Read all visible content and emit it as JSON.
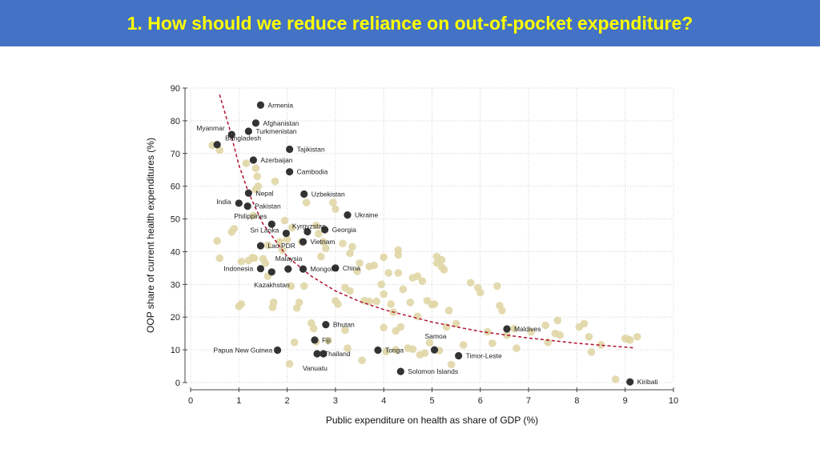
{
  "header": {
    "title": "1. How should we reduce reliance on out-of-pocket expenditure?"
  },
  "colors": {
    "header_bg": "#4472c4",
    "title": "#ffff00",
    "background_points": "#e0d6a6",
    "labeled_points": "#333333",
    "fit_line": "#b01030"
  },
  "chart_data": {
    "type": "scatter",
    "xlabel": "Public expenditure on health as share of GDP (%)",
    "ylabel": "OOP share of current health expenditures (%)",
    "xlim": [
      0,
      10
    ],
    "ylim": [
      0,
      90
    ],
    "xticks": [
      0,
      1,
      2,
      3,
      4,
      5,
      6,
      7,
      8,
      9,
      10
    ],
    "yticks": [
      0,
      10,
      20,
      30,
      40,
      50,
      60,
      70,
      80,
      90
    ],
    "grid": true,
    "labeled_points": [
      {
        "label": "Armenia",
        "x": 1.45,
        "y": 84.8
      },
      {
        "label": "Afghanistan",
        "x": 1.35,
        "y": 79.3
      },
      {
        "label": "Turkmenistan",
        "x": 1.2,
        "y": 76.8
      },
      {
        "label": "Myanmar",
        "x": 0.85,
        "y": 75.8
      },
      {
        "label": "Bangladesh",
        "x": 0.55,
        "y": 72.7
      },
      {
        "label": "Tajikistan",
        "x": 2.05,
        "y": 71.3
      },
      {
        "label": "Azerbaijan",
        "x": 1.3,
        "y": 68.0
      },
      {
        "label": "Cambodia",
        "x": 2.05,
        "y": 64.4
      },
      {
        "label": "Nepal",
        "x": 1.2,
        "y": 57.9
      },
      {
        "label": "Uzbekistan",
        "x": 2.35,
        "y": 57.6
      },
      {
        "label": "India",
        "x": 1.0,
        "y": 54.8
      },
      {
        "label": "Pakistan",
        "x": 1.18,
        "y": 53.9
      },
      {
        "label": "Ukraine",
        "x": 3.25,
        "y": 51.2
      },
      {
        "label": "Philippines",
        "x": 1.68,
        "y": 48.4
      },
      {
        "label": "Kyrgyzstan",
        "x": 2.42,
        "y": 46.1
      },
      {
        "label": "Georgia",
        "x": 2.78,
        "y": 46.7
      },
      {
        "label": "Sri Lanka",
        "x": 1.98,
        "y": 45.6
      },
      {
        "label": "Vietnam",
        "x": 2.33,
        "y": 43.0
      },
      {
        "label": "Lao PDR",
        "x": 1.45,
        "y": 41.8
      },
      {
        "label": "Malaysia",
        "x": 2.02,
        "y": 34.7
      },
      {
        "label": "China",
        "x": 3.0,
        "y": 35.0
      },
      {
        "label": "Indonesia",
        "x": 1.45,
        "y": 34.8
      },
      {
        "label": "Mongolia",
        "x": 2.33,
        "y": 34.7
      },
      {
        "label": "Kazakhstan",
        "x": 1.68,
        "y": 33.8
      },
      {
        "label": "Maldives",
        "x": 6.55,
        "y": 16.4
      },
      {
        "label": "Bhutan",
        "x": 2.8,
        "y": 17.7
      },
      {
        "label": "Fiji",
        "x": 2.57,
        "y": 13.0
      },
      {
        "label": "Samoa",
        "x": 5.05,
        "y": 10.0
      },
      {
        "label": "Papua New Guinea",
        "x": 1.8,
        "y": 9.9
      },
      {
        "label": "Tonga",
        "x": 3.88,
        "y": 9.9
      },
      {
        "label": "Thailand",
        "x": 2.62,
        "y": 8.8
      },
      {
        "label": "Timor-Leste",
        "x": 5.55,
        "y": 8.2
      },
      {
        "label": "Vanuatu",
        "x": 2.75,
        "y": 8.8
      },
      {
        "label": "Solomon Islands",
        "x": 4.35,
        "y": 3.4
      },
      {
        "label": "Kiribati",
        "x": 9.1,
        "y": 0.2
      }
    ],
    "other_points": [
      [
        0.45,
        72.5
      ],
      [
        0.6,
        71.0
      ],
      [
        0.55,
        43.3
      ],
      [
        0.6,
        38.0
      ],
      [
        0.85,
        46.0
      ],
      [
        0.9,
        47.0
      ],
      [
        1.0,
        23.3
      ],
      [
        1.05,
        24.0
      ],
      [
        1.05,
        37.0
      ],
      [
        1.15,
        67.0
      ],
      [
        1.2,
        37.3
      ],
      [
        1.28,
        38.2
      ],
      [
        1.35,
        65.5
      ],
      [
        1.38,
        63.0
      ],
      [
        1.4,
        60.0
      ],
      [
        1.35,
        59.0
      ],
      [
        1.3,
        51.0
      ],
      [
        1.32,
        38.0
      ],
      [
        1.5,
        37.8
      ],
      [
        1.55,
        36.5
      ],
      [
        1.6,
        32.5
      ],
      [
        1.6,
        42.0
      ],
      [
        1.7,
        23.0
      ],
      [
        1.72,
        24.5
      ],
      [
        1.75,
        61.5
      ],
      [
        1.85,
        43.0
      ],
      [
        1.9,
        40.5
      ],
      [
        1.95,
        49.5
      ],
      [
        2.0,
        43.8
      ],
      [
        2.05,
        5.7
      ],
      [
        2.08,
        29.5
      ],
      [
        2.1,
        47.3
      ],
      [
        2.15,
        12.3
      ],
      [
        2.2,
        22.8
      ],
      [
        2.25,
        24.5
      ],
      [
        2.3,
        43.0
      ],
      [
        2.35,
        29.5
      ],
      [
        2.4,
        55.0
      ],
      [
        2.5,
        18.2
      ],
      [
        2.55,
        16.5
      ],
      [
        2.6,
        12.5
      ],
      [
        2.6,
        48.0
      ],
      [
        2.65,
        45.5
      ],
      [
        2.7,
        38.5
      ],
      [
        2.75,
        43.0
      ],
      [
        2.8,
        41.0
      ],
      [
        2.85,
        12.8
      ],
      [
        2.95,
        55.0
      ],
      [
        3.0,
        53.0
      ],
      [
        3.0,
        25.0
      ],
      [
        3.05,
        24.0
      ],
      [
        3.15,
        42.5
      ],
      [
        3.2,
        16.0
      ],
      [
        3.2,
        29.0
      ],
      [
        3.25,
        10.5
      ],
      [
        3.3,
        28.0
      ],
      [
        3.3,
        39.5
      ],
      [
        3.35,
        41.5
      ],
      [
        3.45,
        34.0
      ],
      [
        3.5,
        36.5
      ],
      [
        3.55,
        6.8
      ],
      [
        3.6,
        25.0
      ],
      [
        3.7,
        24.8
      ],
      [
        3.7,
        35.5
      ],
      [
        3.8,
        35.8
      ],
      [
        3.85,
        24.8
      ],
      [
        3.95,
        30.0
      ],
      [
        4.0,
        38.3
      ],
      [
        4.0,
        27.0
      ],
      [
        4.0,
        16.8
      ],
      [
        4.05,
        9.5
      ],
      [
        4.1,
        33.5
      ],
      [
        4.15,
        24.0
      ],
      [
        4.2,
        21.5
      ],
      [
        4.25,
        10.0
      ],
      [
        4.25,
        15.8
      ],
      [
        4.3,
        40.5
      ],
      [
        4.3,
        33.5
      ],
      [
        4.3,
        39.0
      ],
      [
        4.35,
        17.0
      ],
      [
        4.4,
        28.5
      ],
      [
        4.5,
        10.5
      ],
      [
        4.55,
        24.5
      ],
      [
        4.6,
        32.0
      ],
      [
        4.6,
        10.2
      ],
      [
        4.7,
        32.5
      ],
      [
        4.7,
        20.2
      ],
      [
        4.75,
        8.5
      ],
      [
        4.8,
        31.0
      ],
      [
        4.85,
        9.0
      ],
      [
        4.9,
        25.0
      ],
      [
        4.95,
        12.2
      ],
      [
        5.0,
        23.8
      ],
      [
        5.05,
        24.0
      ],
      [
        5.1,
        36.5
      ],
      [
        5.1,
        38.5
      ],
      [
        5.15,
        9.8
      ],
      [
        5.2,
        35.3
      ],
      [
        5.2,
        37.5
      ],
      [
        5.25,
        34.5
      ],
      [
        5.3,
        17.0
      ],
      [
        5.35,
        22.0
      ],
      [
        5.4,
        5.5
      ],
      [
        5.5,
        18.0
      ],
      [
        5.65,
        11.5
      ],
      [
        5.8,
        30.5
      ],
      [
        5.95,
        29.0
      ],
      [
        6.0,
        27.5
      ],
      [
        6.15,
        15.5
      ],
      [
        6.25,
        12.0
      ],
      [
        6.35,
        29.5
      ],
      [
        6.4,
        23.5
      ],
      [
        6.45,
        22.0
      ],
      [
        6.55,
        14.5
      ],
      [
        6.7,
        16.5
      ],
      [
        6.75,
        10.5
      ],
      [
        7.05,
        15.5
      ],
      [
        7.35,
        17.5
      ],
      [
        7.4,
        12.3
      ],
      [
        7.55,
        15.0
      ],
      [
        7.6,
        19.0
      ],
      [
        7.65,
        14.5
      ],
      [
        8.05,
        17.0
      ],
      [
        8.15,
        18.0
      ],
      [
        8.25,
        14.0
      ],
      [
        8.3,
        9.3
      ],
      [
        8.5,
        11.5
      ],
      [
        8.8,
        1.0
      ],
      [
        9.0,
        13.5
      ],
      [
        9.05,
        13.3
      ],
      [
        9.1,
        13.0
      ],
      [
        9.25,
        14.0
      ]
    ],
    "fit_line": {
      "style": "dashed",
      "points": [
        [
          0.6,
          88
        ],
        [
          0.8,
          78
        ],
        [
          1.0,
          66.5
        ],
        [
          1.2,
          58
        ],
        [
          1.5,
          48.5
        ],
        [
          2.0,
          38.5
        ],
        [
          2.5,
          32.5
        ],
        [
          3.0,
          28
        ],
        [
          3.5,
          24.8
        ],
        [
          4.0,
          22.3
        ],
        [
          5.0,
          18.5
        ],
        [
          6.0,
          15.6
        ],
        [
          7.0,
          13.6
        ],
        [
          8.0,
          12.0
        ],
        [
          9.2,
          10.6
        ]
      ]
    }
  }
}
